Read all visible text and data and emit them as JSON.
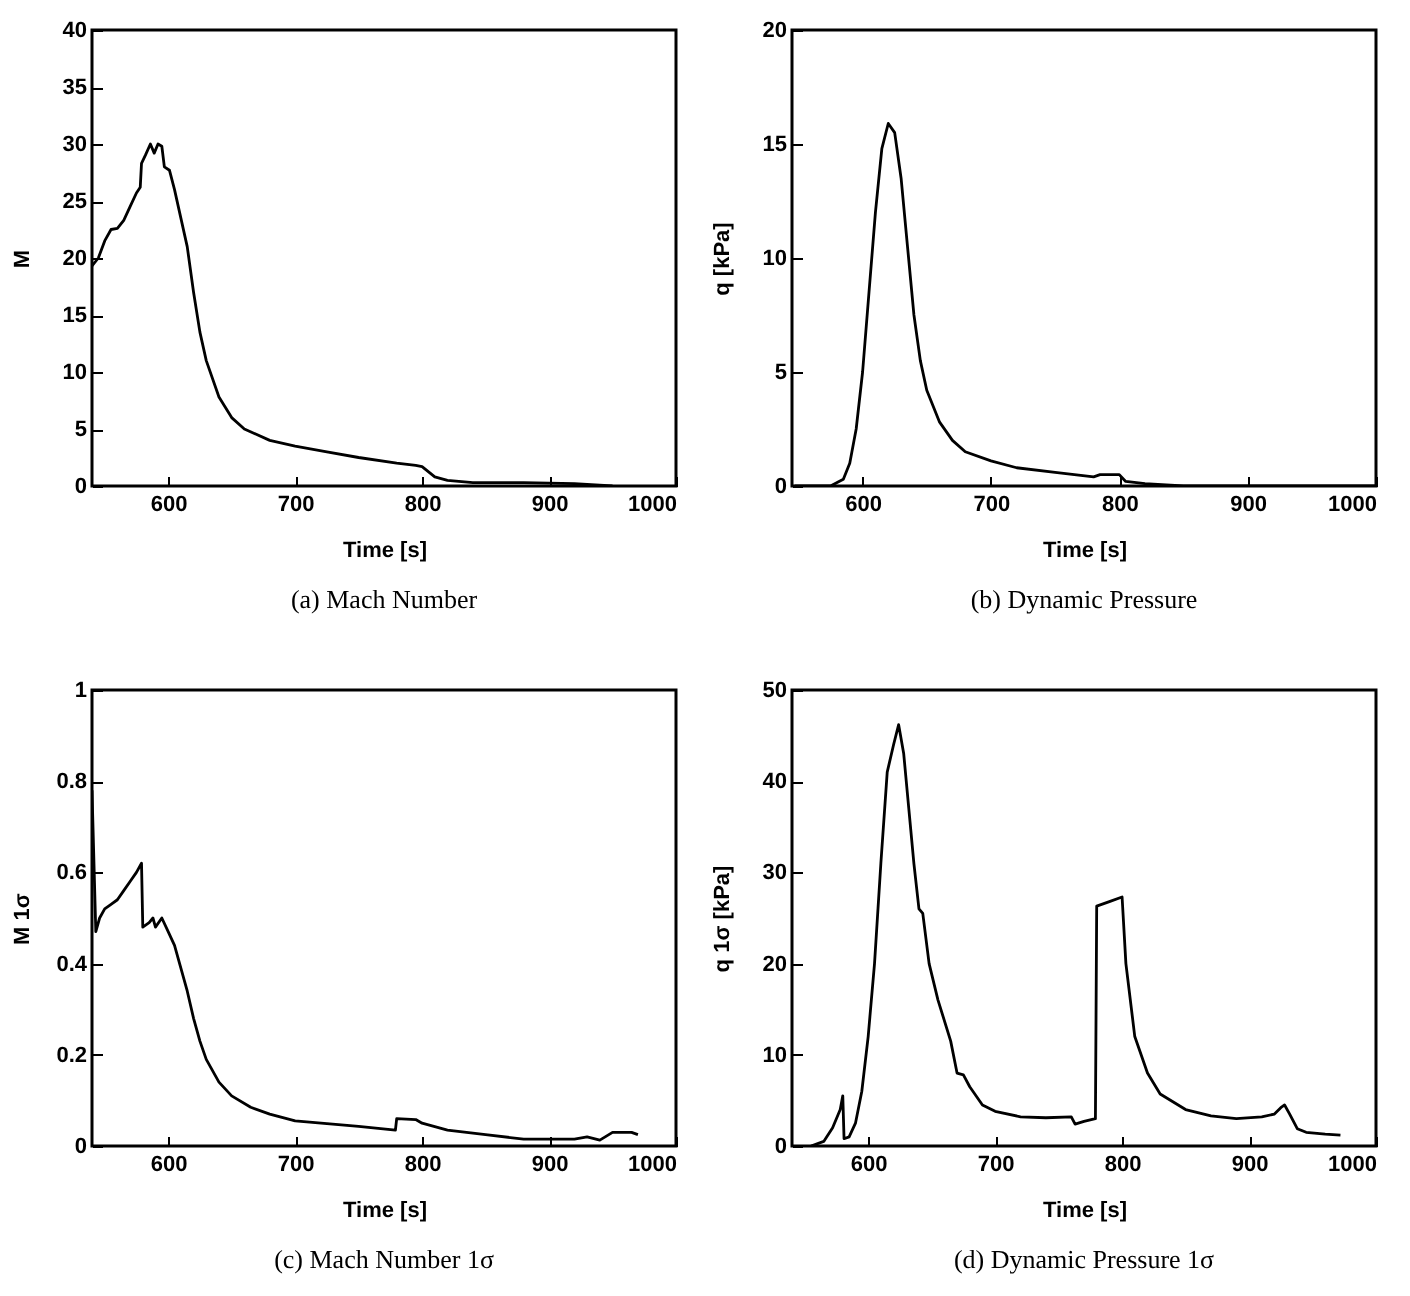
{
  "chart_data": [
    {
      "type": "line",
      "title": "(a)  Mach Number",
      "xlabel": "Time [s]",
      "ylabel": "M",
      "color": "#000000",
      "grid": false,
      "xlim": [
        540,
        1000
      ],
      "ylim": [
        0,
        40
      ],
      "xticks": [
        600,
        700,
        800,
        900,
        1000
      ],
      "yticks": [
        0,
        5,
        10,
        15,
        20,
        25,
        30,
        35,
        40
      ],
      "x": [
        540,
        545,
        550,
        555,
        560,
        565,
        570,
        575,
        578,
        579,
        582,
        586,
        589,
        592,
        595,
        597,
        601,
        605,
        610,
        615,
        620,
        625,
        630,
        640,
        650,
        660,
        680,
        700,
        725,
        750,
        780,
        795,
        800,
        810,
        820,
        840,
        880,
        920,
        950
      ],
      "values": [
        19.3,
        20,
        21.5,
        22.5,
        22.6,
        23.3,
        24.5,
        25.7,
        26.2,
        28.3,
        29,
        30,
        29.2,
        30,
        29.8,
        28,
        27.7,
        26,
        23.5,
        21,
        17,
        13.5,
        11,
        7.8,
        6,
        5,
        4,
        3.5,
        3,
        2.5,
        2,
        1.8,
        1.7,
        0.8,
        0.5,
        0.3,
        0.3,
        0.2,
        0
      ]
    },
    {
      "type": "line",
      "title": "(b)  Dynamic Pressure",
      "xlabel": "Time [s]",
      "ylabel": "q [kPa]",
      "color": "#000000",
      "grid": false,
      "xlim": [
        545,
        1000
      ],
      "ylim": [
        0,
        20
      ],
      "xticks": [
        600,
        700,
        800,
        900,
        1000
      ],
      "yticks": [
        0,
        5,
        10,
        15,
        20
      ],
      "x": [
        547,
        575,
        585,
        590,
        595,
        600,
        605,
        610,
        615,
        620,
        625,
        630,
        635,
        640,
        645,
        650,
        660,
        670,
        680,
        700,
        720,
        750,
        780,
        785,
        800,
        805,
        820,
        850,
        1000
      ],
      "values": [
        0,
        0,
        0.3,
        1,
        2.5,
        5,
        8.5,
        12,
        14.8,
        15.9,
        15.5,
        13.5,
        10.5,
        7.5,
        5.5,
        4.2,
        2.8,
        2,
        1.5,
        1.1,
        0.8,
        0.6,
        0.4,
        0.5,
        0.5,
        0.2,
        0.1,
        0,
        0
      ]
    },
    {
      "type": "line",
      "title": "(c)  Mach Number 1σ",
      "xlabel": "Time [s]",
      "ylabel": "M 1σ",
      "color": "#000000",
      "grid": false,
      "xlim": [
        540,
        1000
      ],
      "ylim": [
        0,
        1
      ],
      "xticks": [
        600,
        700,
        800,
        900,
        1000
      ],
      "yticks": [
        0,
        0.2,
        0.4,
        0.6,
        0.8,
        1
      ],
      "x": [
        540,
        543,
        546,
        550,
        555,
        560,
        565,
        570,
        575,
        579,
        580,
        585,
        588,
        590,
        595,
        600,
        605,
        610,
        615,
        620,
        625,
        630,
        640,
        650,
        665,
        680,
        700,
        750,
        779,
        780,
        795,
        800,
        820,
        850,
        880,
        920,
        930,
        940,
        950,
        965,
        970
      ],
      "values": [
        0.78,
        0.47,
        0.5,
        0.52,
        0.53,
        0.54,
        0.56,
        0.58,
        0.6,
        0.62,
        0.48,
        0.49,
        0.5,
        0.48,
        0.5,
        0.47,
        0.44,
        0.39,
        0.34,
        0.28,
        0.23,
        0.19,
        0.14,
        0.11,
        0.085,
        0.07,
        0.055,
        0.043,
        0.035,
        0.06,
        0.058,
        0.05,
        0.035,
        0.025,
        0.015,
        0.015,
        0.02,
        0.013,
        0.03,
        0.03,
        0.025
      ]
    },
    {
      "type": "line",
      "title": "(d)  Dynamic Pressure 1σ",
      "xlabel": "Time [s]",
      "ylabel": "q 1σ [kPa]",
      "color": "#000000",
      "grid": false,
      "xlim": [
        540,
        1000
      ],
      "ylim": [
        0,
        50
      ],
      "xticks": [
        600,
        700,
        800,
        900,
        1000
      ],
      "yticks": [
        0,
        10,
        20,
        30,
        40,
        50
      ],
      "x": [
        555,
        565,
        572,
        578,
        580,
        581,
        585,
        590,
        595,
        600,
        605,
        610,
        615,
        620,
        624,
        628,
        632,
        636,
        640,
        643,
        648,
        655,
        665,
        670,
        675,
        680,
        690,
        700,
        720,
        740,
        760,
        763,
        770,
        779,
        780,
        790,
        800,
        803,
        810,
        820,
        830,
        850,
        870,
        890,
        910,
        920,
        925,
        928,
        932,
        938,
        945,
        960,
        972
      ],
      "values": [
        0,
        0.5,
        2,
        4,
        5.5,
        0.8,
        1,
        2.5,
        6,
        12,
        20,
        31,
        41,
        44,
        46.2,
        43,
        37,
        31,
        26,
        25.5,
        20,
        16,
        11.5,
        8,
        7.8,
        6.5,
        4.5,
        3.8,
        3.2,
        3.1,
        3.2,
        2.4,
        2.7,
        3,
        26.3,
        26.8,
        27.3,
        20,
        12,
        8,
        5.7,
        4,
        3.3,
        3,
        3.2,
        3.5,
        4.2,
        4.5,
        3.5,
        1.9,
        1.5,
        1.3,
        1.2
      ]
    }
  ]
}
